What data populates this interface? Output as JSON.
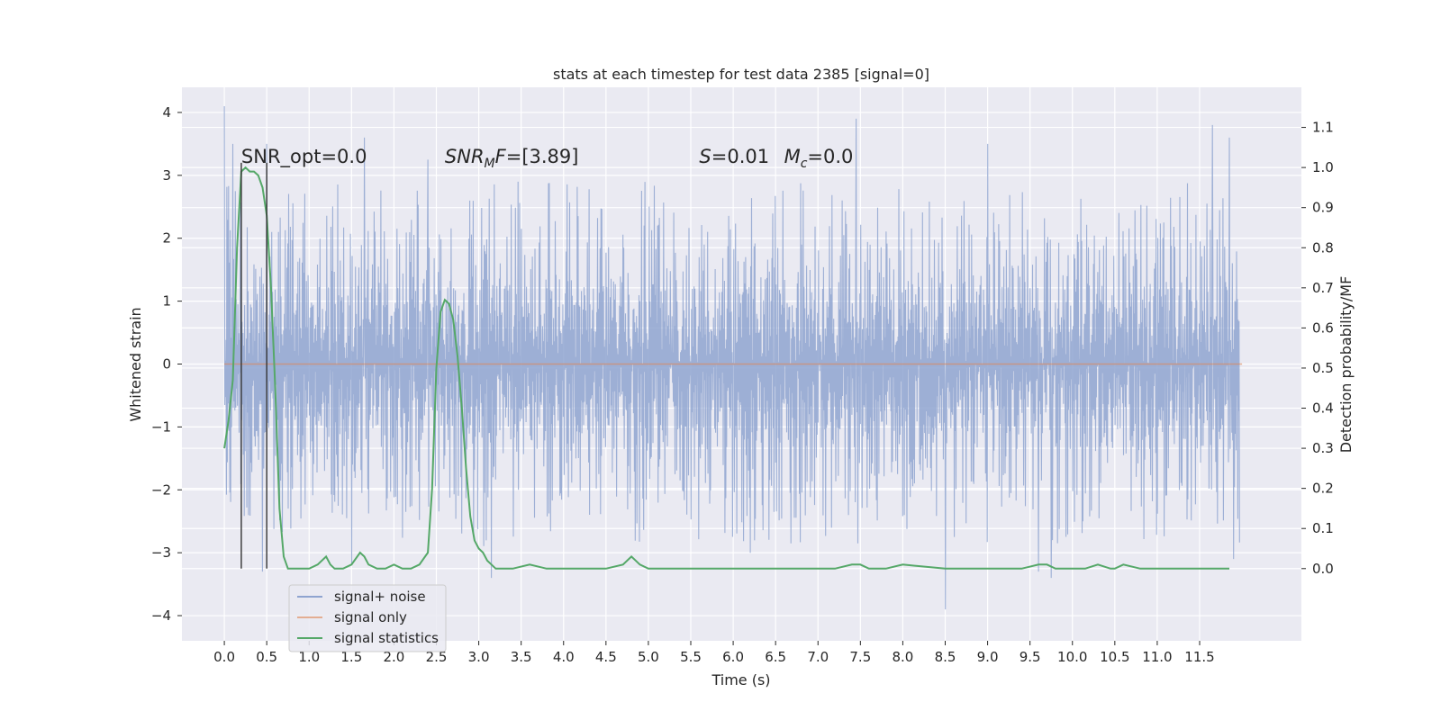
{
  "chart_data": {
    "type": "line",
    "title": "stats at each timestep for test data 2385 [signal=0]",
    "xlabel": "Time (s)",
    "ylabel": "Whitened strain",
    "y2label": "Detection probability/MF",
    "xlim": [
      -0.5,
      12.7
    ],
    "ylim": [
      -4.4,
      4.4
    ],
    "y2lim": [
      -0.18,
      1.2
    ],
    "xticks": [
      0.0,
      0.5,
      1.0,
      1.5,
      2.0,
      2.5,
      3.0,
      3.5,
      4.0,
      4.5,
      5.0,
      5.5,
      6.0,
      6.5,
      7.0,
      7.5,
      8.0,
      8.5,
      9.0,
      9.5,
      10.0,
      10.5,
      11.0,
      11.5
    ],
    "xtick_labels": [
      "0.0",
      "0.5",
      "1.0",
      "1.5",
      "2.0",
      "2.5",
      "3.0",
      "3.5",
      "4.0",
      "4.5",
      "5.0",
      "5.5",
      "6.0",
      "6.5",
      "7.0",
      "7.5",
      "8.0",
      "8.5",
      "9.0",
      "9.5",
      "10.0",
      "10.5",
      "11.0",
      "11.5"
    ],
    "yticks": [
      4,
      3,
      2,
      1,
      0,
      -1,
      -2,
      -3,
      -4
    ],
    "ytick_labels": [
      "4",
      "3",
      "2",
      "1",
      "0",
      "−1",
      "−2",
      "−3",
      "−4"
    ],
    "y2ticks": [
      1.1,
      1.0,
      0.9,
      0.8,
      0.7,
      0.6,
      0.5,
      0.4,
      0.3,
      0.2,
      0.1,
      0.0
    ],
    "y2tick_labels": [
      "1.1",
      "1.0",
      "0.9",
      "0.8",
      "0.7",
      "0.6",
      "0.5",
      "0.4",
      "0.3",
      "0.2",
      "0.1",
      "0.0"
    ],
    "grid": true,
    "legend_position": "lower-left",
    "annotations": [
      {
        "text": "SNR_opt=0.0",
        "x": 0.2,
        "y": 3.2
      },
      {
        "text": "SNR_MF=[3.89]",
        "x": 2.6,
        "y": 3.2
      },
      {
        "text": "S=0.01",
        "x": 5.6,
        "y": 3.2
      },
      {
        "text": "M_c=0.0",
        "x": 6.6,
        "y": 3.2
      }
    ],
    "vlines": [
      0.2,
      0.5
    ],
    "series": [
      {
        "name": "signal+ noise",
        "color": "#8fa4d0",
        "axis": "left",
        "t_range": [
          0.0,
          12.0
        ],
        "envelope": {
          "typical_upper": 1.35,
          "typical_lower": -1.15,
          "peak_upper": 2.9,
          "peak_lower": -2.5,
          "spikes": [
            [
              0.0,
              4.1
            ],
            [
              0.1,
              3.5
            ],
            [
              0.5,
              3.5
            ],
            [
              1.65,
              3.6
            ],
            [
              2.4,
              3.25
            ],
            [
              7.45,
              3.9
            ],
            [
              9.0,
              3.5
            ],
            [
              11.65,
              3.8
            ],
            [
              11.85,
              3.6
            ],
            [
              0.45,
              -3.3
            ],
            [
              1.5,
              -3.2
            ],
            [
              3.15,
              -3.4
            ],
            [
              6.2,
              -3.0
            ],
            [
              8.5,
              -3.9
            ],
            [
              9.6,
              -3.3
            ],
            [
              9.75,
              -3.4
            ],
            [
              11.9,
              -3.1
            ]
          ]
        }
      },
      {
        "name": "signal only",
        "color": "#dd8452",
        "axis": "left",
        "x": [
          0.0,
          12.0
        ],
        "y": [
          0.0,
          0.0
        ]
      },
      {
        "name": "signal statistics",
        "color": "#55a868",
        "axis": "right",
        "x": [
          0.0,
          0.05,
          0.1,
          0.15,
          0.2,
          0.25,
          0.3,
          0.35,
          0.4,
          0.45,
          0.5,
          0.55,
          0.6,
          0.65,
          0.7,
          0.75,
          0.8,
          0.85,
          0.9,
          1.0,
          1.1,
          1.2,
          1.25,
          1.3,
          1.4,
          1.5,
          1.6,
          1.65,
          1.7,
          1.8,
          1.9,
          2.0,
          2.1,
          2.2,
          2.3,
          2.4,
          2.45,
          2.5,
          2.55,
          2.6,
          2.65,
          2.7,
          2.75,
          2.8,
          2.85,
          2.9,
          2.95,
          3.0,
          3.05,
          3.1,
          3.15,
          3.2,
          3.3,
          3.4,
          3.6,
          3.8,
          4.0,
          4.5,
          4.7,
          4.8,
          4.9,
          5.0,
          6.0,
          6.5,
          7.0,
          7.2,
          7.4,
          7.45,
          7.5,
          7.6,
          7.8,
          8.0,
          8.5,
          9.0,
          9.4,
          9.6,
          9.65,
          9.7,
          9.8,
          10.0,
          10.15,
          10.3,
          10.45,
          10.5,
          10.6,
          10.8,
          11.0,
          11.5,
          11.85
        ],
        "y": [
          0.3,
          0.37,
          0.47,
          0.8,
          0.99,
          1.0,
          0.99,
          0.99,
          0.98,
          0.95,
          0.88,
          0.7,
          0.45,
          0.15,
          0.03,
          0.0,
          0.0,
          0.0,
          0.0,
          0.0,
          0.01,
          0.03,
          0.01,
          0.0,
          0.0,
          0.01,
          0.04,
          0.03,
          0.01,
          0.0,
          0.0,
          0.01,
          0.0,
          0.0,
          0.01,
          0.04,
          0.2,
          0.5,
          0.64,
          0.67,
          0.66,
          0.62,
          0.53,
          0.4,
          0.25,
          0.13,
          0.07,
          0.05,
          0.04,
          0.02,
          0.01,
          0.0,
          0.0,
          0.0,
          0.01,
          0.0,
          0.0,
          0.0,
          0.01,
          0.03,
          0.01,
          0.0,
          0.0,
          0.0,
          0.0,
          0.0,
          0.01,
          0.01,
          0.01,
          0.0,
          0.0,
          0.01,
          0.0,
          0.0,
          0.0,
          0.01,
          0.01,
          0.01,
          0.0,
          0.0,
          0.0,
          0.01,
          0.0,
          0.0,
          0.01,
          0.0,
          0.0,
          0.0,
          0.0
        ]
      }
    ]
  }
}
